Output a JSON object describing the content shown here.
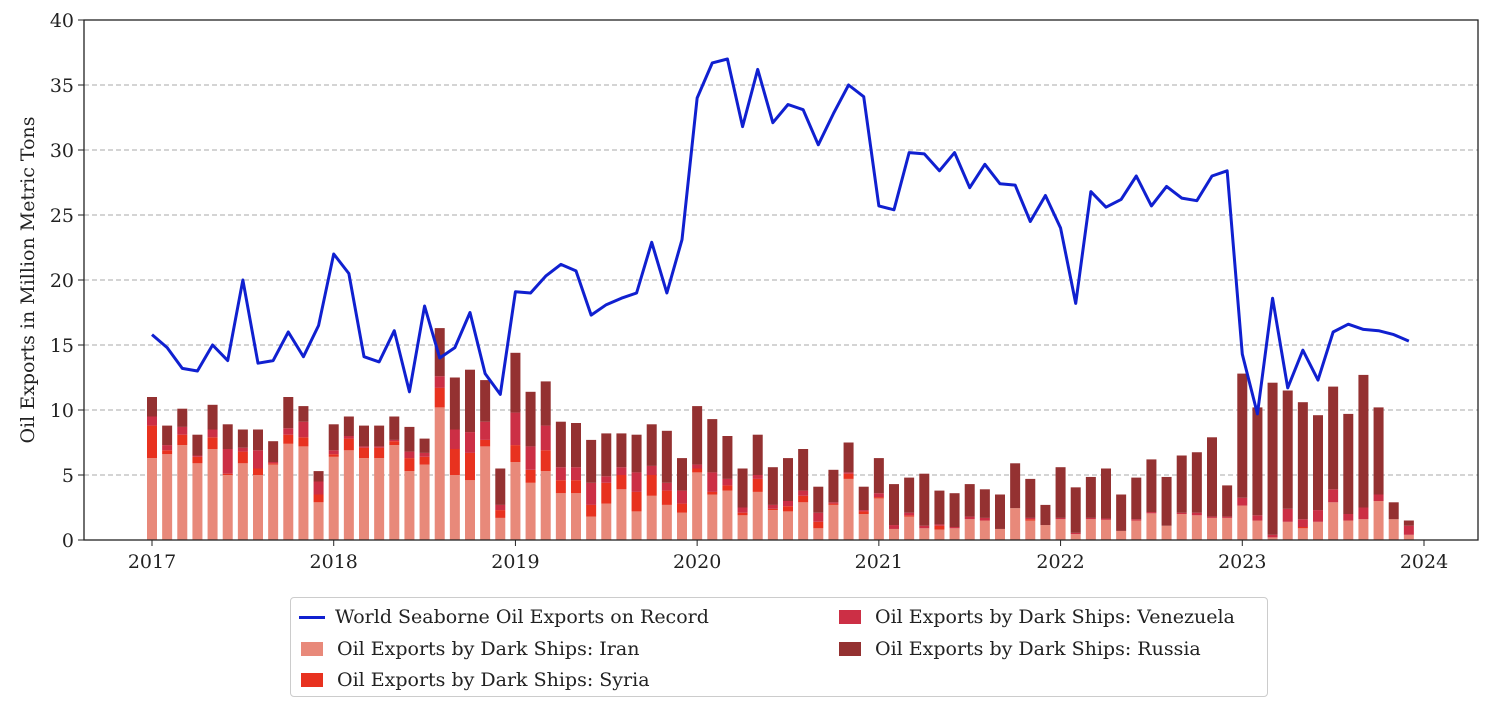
{
  "chart_data": {
    "type": "bar",
    "stacked": true,
    "ylabel": "Oil Exports in Million Metric Tons",
    "xlabel": "",
    "ylim": [
      0,
      40
    ],
    "yticks": [
      "0",
      "5",
      "10",
      "15",
      "20",
      "25",
      "30",
      "35",
      "40"
    ],
    "xticks": [
      "2017",
      "2018",
      "2019",
      "2020",
      "2021",
      "2022",
      "2023",
      "2024"
    ],
    "grid": "horizontal dashed",
    "legend_position": "bottom",
    "start_month": "2017-01",
    "series": [
      {
        "name": "Oil Exports by Dark Ships: Iran",
        "kind": "bar",
        "color": "#e8897a",
        "values": [
          6.3,
          6.6,
          7.3,
          5.9,
          7.0,
          5.0,
          5.9,
          5.0,
          5.8,
          7.4,
          7.2,
          2.9,
          6.4,
          6.9,
          6.3,
          6.3,
          7.3,
          5.3,
          5.8,
          10.2,
          5.0,
          4.6,
          7.2,
          1.7,
          6.0,
          4.4,
          5.3,
          3.6,
          3.6,
          1.8,
          2.8,
          3.9,
          2.2,
          3.4,
          2.7,
          2.1,
          5.2,
          3.5,
          3.8,
          1.9,
          3.7,
          2.3,
          2.2,
          2.9,
          0.9,
          2.7,
          4.7,
          2.0,
          3.2,
          0.85,
          1.8,
          0.9,
          0.8,
          0.9,
          1.6,
          1.5,
          0.85,
          2.45,
          1.5,
          1.15,
          1.6,
          0.45,
          1.6,
          1.55,
          0.7,
          1.5,
          2.05,
          1.1,
          2.0,
          1.9,
          1.7,
          1.7,
          2.65,
          1.5,
          0.2,
          1.4,
          0.9,
          1.4,
          2.9,
          1.5,
          1.6,
          3.0,
          1.6,
          0.4
        ]
      },
      {
        "name": "Oil Exports by Dark Ships: Syria",
        "kind": "bar",
        "color": "#e8321f",
        "values": [
          2.5,
          0.3,
          0.8,
          0.5,
          0.9,
          0.1,
          0.9,
          0.5,
          0.1,
          0.7,
          0.7,
          0.6,
          0.2,
          0.9,
          0.8,
          0.8,
          0.3,
          1.0,
          0.6,
          1.5,
          2.0,
          2.1,
          0.5,
          0.6,
          1.3,
          1.0,
          1.6,
          1.0,
          1.0,
          0.9,
          1.6,
          1.1,
          1.5,
          1.6,
          1.1,
          0.7,
          0.3,
          0.2,
          0.4,
          0.2,
          1.0,
          0.1,
          0.4,
          0.5,
          0.5,
          0.1,
          0.4,
          0.2,
          0.1,
          0,
          0.1,
          0,
          0.3,
          0,
          0,
          0,
          0,
          0,
          0.1,
          0,
          0,
          0,
          0,
          0,
          0,
          0,
          0,
          0,
          0,
          0,
          0,
          0,
          0,
          0,
          0,
          0,
          0.1,
          0,
          0,
          0,
          0,
          0,
          0,
          0
        ]
      },
      {
        "name": "Oil Exports by Dark Ships: Venezuela",
        "kind": "bar",
        "color": "#cc2f45",
        "values": [
          0.7,
          0.4,
          0.6,
          0.1,
          0.6,
          1.9,
          0.3,
          1.4,
          0.1,
          0.5,
          1.2,
          1.0,
          0.3,
          0.2,
          0.1,
          0.1,
          0.1,
          0.5,
          0.3,
          0.9,
          1.5,
          1.6,
          1.4,
          0.4,
          2.5,
          1.8,
          1.9,
          1.0,
          1.0,
          1.7,
          0.5,
          0.6,
          1.5,
          0.7,
          0.6,
          1.0,
          0.3,
          1.5,
          0.5,
          0.4,
          0.3,
          0.3,
          0.4,
          0.4,
          0.7,
          0.1,
          0.1,
          0.1,
          0.3,
          0.3,
          0.2,
          0.2,
          0.1,
          0.1,
          0.2,
          0.2,
          0,
          0,
          0.1,
          0,
          0.1,
          0.1,
          0.1,
          0.1,
          0,
          0.1,
          0.1,
          0,
          0.1,
          0.2,
          0.1,
          0.1,
          0.6,
          0.4,
          0.2,
          1.0,
          0.6,
          0.9,
          1.0,
          0.5,
          0.9,
          0.5,
          0,
          0.7
        ]
      },
      {
        "name": "Oil Exports by Dark Ships: Russia",
        "kind": "bar",
        "color": "#943131",
        "values": [
          1.5,
          1.5,
          1.4,
          1.6,
          1.9,
          1.9,
          1.4,
          1.6,
          1.6,
          2.4,
          1.2,
          0.8,
          2.0,
          1.5,
          1.6,
          1.6,
          1.8,
          1.9,
          1.1,
          3.7,
          4.0,
          4.8,
          3.2,
          2.8,
          4.6,
          4.2,
          3.4,
          3.5,
          3.4,
          3.3,
          3.3,
          2.6,
          2.9,
          3.2,
          4.0,
          2.5,
          4.5,
          4.1,
          3.3,
          3.0,
          3.1,
          2.9,
          3.3,
          3.2,
          2.0,
          2.5,
          2.3,
          1.8,
          2.7,
          3.15,
          2.7,
          4.0,
          2.6,
          2.6,
          2.5,
          2.2,
          2.65,
          3.45,
          3.0,
          1.55,
          3.9,
          3.5,
          3.15,
          3.85,
          2.8,
          3.2,
          4.05,
          3.75,
          4.4,
          4.65,
          6.1,
          2.4,
          9.55,
          8.3,
          11.7,
          9.1,
          9.0,
          7.3,
          7.9,
          7.7,
          10.2,
          6.7,
          1.3,
          0.4
        ]
      },
      {
        "name": "World Seaborne Oil Exports on Record",
        "kind": "line",
        "color": "#1020d0",
        "values": [
          15.8,
          14.8,
          13.2,
          13.0,
          15.0,
          13.8,
          20.0,
          13.6,
          13.8,
          16.0,
          14.1,
          16.5,
          22.0,
          20.5,
          14.1,
          13.7,
          16.1,
          11.4,
          18.0,
          14.0,
          14.8,
          17.5,
          12.8,
          11.2,
          19.1,
          19.0,
          20.3,
          21.2,
          20.7,
          17.3,
          18.1,
          18.6,
          19.0,
          22.9,
          19.0,
          23.1,
          34.0,
          36.7,
          37.0,
          31.8,
          36.2,
          32.1,
          33.5,
          33.1,
          30.4,
          32.8,
          35.0,
          34.1,
          25.7,
          25.4,
          29.8,
          29.7,
          28.4,
          29.8,
          27.1,
          28.9,
          27.4,
          27.3,
          24.5,
          26.5,
          24.0,
          18.2,
          26.8,
          25.6,
          26.2,
          28.0,
          25.7,
          27.2,
          26.3,
          26.1,
          28.0,
          28.4,
          14.3,
          9.7,
          18.6,
          11.7,
          14.6,
          12.3,
          16.0,
          16.6,
          16.2,
          16.1,
          15.8,
          15.3
        ]
      }
    ]
  }
}
